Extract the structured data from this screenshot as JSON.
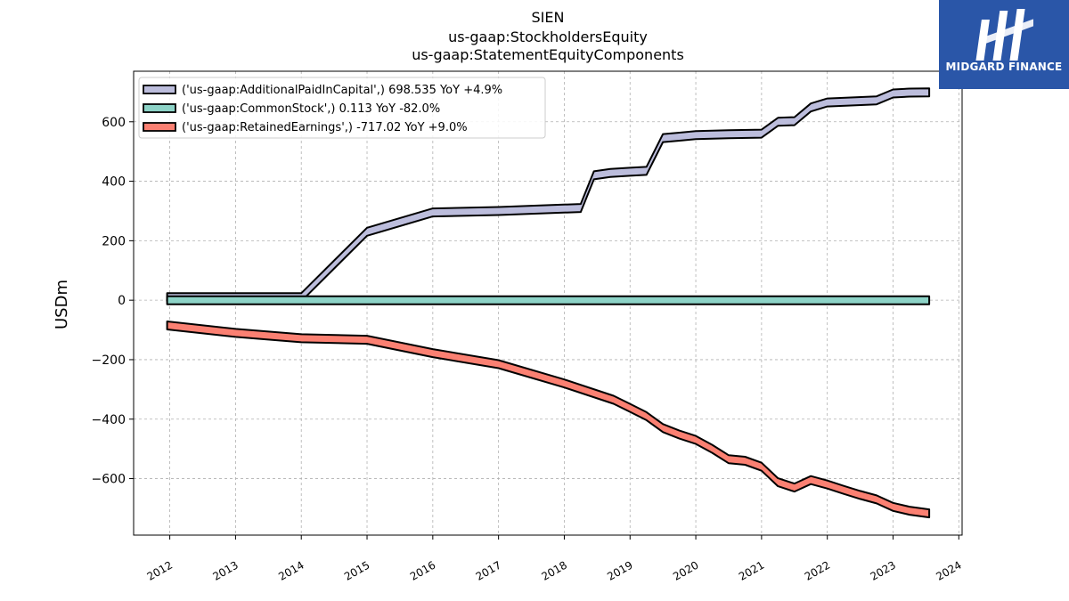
{
  "chart_data": {
    "type": "area",
    "title_lines": [
      "SIEN",
      "us-gaap:StockholdersEquity",
      "us-gaap:StatementEquityComponents"
    ],
    "ylabel": "USDm",
    "xlabel": "",
    "xlim": [
      2011.45,
      2024.05
    ],
    "ylim": [
      -790,
      770
    ],
    "x_ticks": [
      2012,
      2013,
      2014,
      2015,
      2016,
      2017,
      2018,
      2019,
      2020,
      2021,
      2022,
      2023,
      2024
    ],
    "y_ticks": [
      -600,
      -400,
      -200,
      0,
      200,
      400,
      600
    ],
    "y_tick_labels": [
      "−600",
      "−400",
      "−200",
      "0",
      "200",
      "400",
      "600"
    ],
    "grid": true,
    "legend_position": "top-left",
    "series": [
      {
        "name": "('us-gaap:AdditionalPaidInCapital',) 698.535 YoY +4.9%",
        "color": "#bcbddc",
        "points": [
          [
            2011.96,
            10
          ],
          [
            2014.0,
            10
          ],
          [
            2015.0,
            230
          ],
          [
            2016.0,
            295
          ],
          [
            2017.0,
            300
          ],
          [
            2018.25,
            310
          ],
          [
            2018.45,
            420
          ],
          [
            2018.7,
            428
          ],
          [
            2019.0,
            432
          ],
          [
            2019.25,
            435
          ],
          [
            2019.5,
            545
          ],
          [
            2019.75,
            550
          ],
          [
            2020.0,
            555
          ],
          [
            2020.5,
            558
          ],
          [
            2021.0,
            560
          ],
          [
            2021.25,
            600
          ],
          [
            2021.5,
            602
          ],
          [
            2021.75,
            648
          ],
          [
            2022.0,
            665
          ],
          [
            2022.75,
            672
          ],
          [
            2023.0,
            695
          ],
          [
            2023.25,
            698
          ],
          [
            2023.55,
            699
          ]
        ]
      },
      {
        "name": "('us-gaap:CommonStock',) 0.113 YoY -82.0%",
        "color": "#8dd3c7",
        "points": [
          [
            2011.96,
            0
          ],
          [
            2023.55,
            0
          ]
        ]
      },
      {
        "name": "('us-gaap:RetainedEarnings',) -717.02 YoY +9.0%",
        "color": "#fb8072",
        "points": [
          [
            2011.96,
            -85
          ],
          [
            2013.0,
            -110
          ],
          [
            2014.0,
            -128
          ],
          [
            2015.0,
            -133
          ],
          [
            2016.0,
            -178
          ],
          [
            2017.0,
            -215
          ],
          [
            2018.0,
            -280
          ],
          [
            2018.75,
            -335
          ],
          [
            2019.0,
            -362
          ],
          [
            2019.25,
            -390
          ],
          [
            2019.5,
            -430
          ],
          [
            2019.75,
            -452
          ],
          [
            2020.0,
            -470
          ],
          [
            2020.25,
            -500
          ],
          [
            2020.5,
            -535
          ],
          [
            2020.75,
            -540
          ],
          [
            2021.0,
            -560
          ],
          [
            2021.25,
            -612
          ],
          [
            2021.5,
            -630
          ],
          [
            2021.75,
            -605
          ],
          [
            2022.0,
            -620
          ],
          [
            2022.25,
            -638
          ],
          [
            2022.5,
            -655
          ],
          [
            2022.75,
            -670
          ],
          [
            2023.0,
            -695
          ],
          [
            2023.25,
            -708
          ],
          [
            2023.55,
            -717
          ]
        ]
      }
    ]
  },
  "logo": {
    "text": "MIDGARD FINANCE",
    "color": "#2a56a8",
    "icon": "midgard-m-logo-icon"
  }
}
